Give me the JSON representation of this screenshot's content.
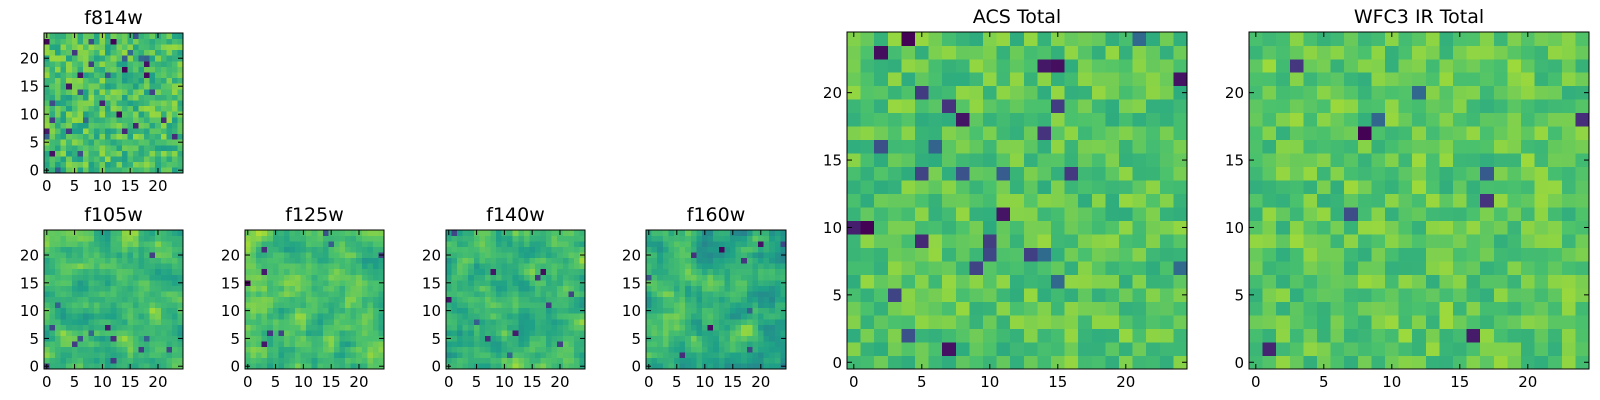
{
  "figure": {
    "background": "#ffffff"
  },
  "colormap": {
    "name": "viridis",
    "stops": [
      "#440154",
      "#46327e",
      "#365c8d",
      "#277f8e",
      "#1fa187",
      "#4ac16d",
      "#a0da39",
      "#fde725"
    ]
  },
  "chart_data": [
    {
      "type": "heatmap",
      "title": "f814w",
      "grid_size": 25,
      "x_ticks": [
        0,
        5,
        10,
        15,
        20
      ],
      "y_ticks": [
        0,
        5,
        10,
        15,
        20
      ],
      "xlim": [
        -0.5,
        24.5
      ],
      "ylim": [
        -0.5,
        24.5
      ],
      "value_range": [
        0,
        1
      ],
      "seed": 11,
      "smooth": 0,
      "base": 0.7,
      "spread": 0.18,
      "dark_rate": 0.06
    },
    {
      "type": "heatmap",
      "title": "f105w",
      "grid_size": 25,
      "x_ticks": [
        0,
        5,
        10,
        15,
        20
      ],
      "y_ticks": [
        0,
        5,
        10,
        15,
        20
      ],
      "xlim": [
        -0.5,
        24.5
      ],
      "ylim": [
        -0.5,
        24.5
      ],
      "value_range": [
        0,
        1
      ],
      "seed": 23,
      "smooth": 1,
      "base": 0.68,
      "spread": 0.2,
      "dark_rate": 0.015
    },
    {
      "type": "heatmap",
      "title": "f125w",
      "grid_size": 25,
      "x_ticks": [
        0,
        5,
        10,
        15,
        20
      ],
      "y_ticks": [
        0,
        5,
        10,
        15,
        20
      ],
      "xlim": [
        -0.5,
        24.5
      ],
      "ylim": [
        -0.5,
        24.5
      ],
      "value_range": [
        0,
        1
      ],
      "seed": 37,
      "smooth": 1,
      "base": 0.7,
      "spread": 0.2,
      "dark_rate": 0.015
    },
    {
      "type": "heatmap",
      "title": "f140w",
      "grid_size": 25,
      "x_ticks": [
        0,
        5,
        10,
        15,
        20
      ],
      "y_ticks": [
        0,
        5,
        10,
        15,
        20
      ],
      "xlim": [
        -0.5,
        24.5
      ],
      "ylim": [
        -0.5,
        24.5
      ],
      "value_range": [
        0,
        1
      ],
      "seed": 41,
      "smooth": 1,
      "base": 0.66,
      "spread": 0.2,
      "dark_rate": 0.015
    },
    {
      "type": "heatmap",
      "title": "f160w",
      "grid_size": 25,
      "x_ticks": [
        0,
        5,
        10,
        15,
        20
      ],
      "y_ticks": [
        0,
        5,
        10,
        15,
        20
      ],
      "xlim": [
        -0.5,
        24.5
      ],
      "ylim": [
        -0.5,
        24.5
      ],
      "value_range": [
        0,
        1
      ],
      "seed": 53,
      "smooth": 1,
      "base": 0.64,
      "spread": 0.21,
      "dark_rate": 0.018
    },
    {
      "type": "heatmap",
      "title": "ACS Total",
      "grid_size": 25,
      "x_ticks": [
        0,
        5,
        10,
        15,
        20
      ],
      "y_ticks": [
        0,
        5,
        10,
        15,
        20
      ],
      "xlim": [
        -0.5,
        24.5
      ],
      "ylim": [
        -0.5,
        24.5
      ],
      "value_range": [
        0,
        1
      ],
      "seed": 67,
      "smooth": 0,
      "base": 0.73,
      "spread": 0.14,
      "dark_rate": 0.035
    },
    {
      "type": "heatmap",
      "title": "WFC3 IR Total",
      "grid_size": 25,
      "x_ticks": [
        0,
        5,
        10,
        15,
        20
      ],
      "y_ticks": [
        0,
        5,
        10,
        15,
        20
      ],
      "xlim": [
        -0.5,
        24.5
      ],
      "ylim": [
        -0.5,
        24.5
      ],
      "value_range": [
        0,
        1
      ],
      "seed": 79,
      "smooth": 0,
      "base": 0.74,
      "spread": 0.14,
      "dark_rate": 0.025
    }
  ]
}
